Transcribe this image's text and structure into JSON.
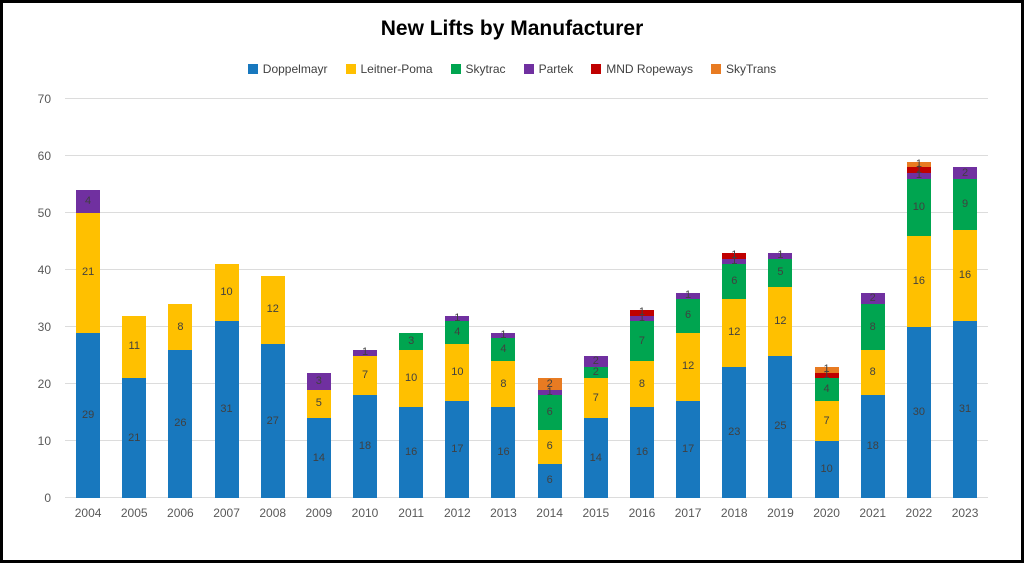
{
  "chart_data": {
    "type": "bar",
    "stacked": true,
    "title": "New Lifts by Manufacturer",
    "legend_position": "top",
    "grid": "horizontal",
    "categories": [
      "2004",
      "2005",
      "2006",
      "2007",
      "2008",
      "2009",
      "2010",
      "2011",
      "2012",
      "2013",
      "2014",
      "2015",
      "2016",
      "2017",
      "2018",
      "2019",
      "2020",
      "2021",
      "2022",
      "2023"
    ],
    "series": [
      {
        "name": "Doppelmayr",
        "color": "#1878BE",
        "values": [
          29,
          21,
          26,
          31,
          27,
          14,
          18,
          16,
          17,
          16,
          6,
          14,
          16,
          17,
          23,
          25,
          10,
          18,
          30,
          31
        ]
      },
      {
        "name": "Leitner-Poma",
        "color": "#FFC000",
        "values": [
          21,
          11,
          8,
          10,
          12,
          5,
          7,
          10,
          10,
          8,
          6,
          7,
          8,
          12,
          12,
          12,
          7,
          8,
          16,
          16
        ]
      },
      {
        "name": "Skytrac",
        "color": "#00A550",
        "values": [
          0,
          0,
          0,
          0,
          0,
          0,
          0,
          3,
          4,
          4,
          6,
          2,
          7,
          6,
          6,
          5,
          4,
          8,
          10,
          9
        ]
      },
      {
        "name": "Partek",
        "color": "#7030A0",
        "values": [
          4,
          0,
          0,
          0,
          0,
          3,
          1,
          0,
          1,
          1,
          1,
          2,
          1,
          1,
          1,
          1,
          0,
          2,
          1,
          2
        ]
      },
      {
        "name": "MND Ropeways",
        "color": "#C00000",
        "values": [
          0,
          0,
          0,
          0,
          0,
          0,
          0,
          0,
          0,
          0,
          0,
          0,
          1,
          0,
          1,
          0,
          1,
          0,
          1,
          0
        ]
      },
      {
        "name": "SkyTrans",
        "color": "#E87B22",
        "values": [
          0,
          0,
          0,
          0,
          0,
          0,
          0,
          0,
          0,
          0,
          2,
          0,
          0,
          0,
          0,
          0,
          1,
          0,
          1,
          0
        ]
      }
    ],
    "ylim": [
      0,
      70
    ],
    "yticks": [
      0,
      10,
      20,
      30,
      40,
      50,
      60,
      70
    ],
    "colors": {
      "data_label": "#404040",
      "axis_text": "#595959",
      "gridline": "#dcdcdc",
      "title_text": "#000000",
      "frame_border": "#000000"
    }
  }
}
